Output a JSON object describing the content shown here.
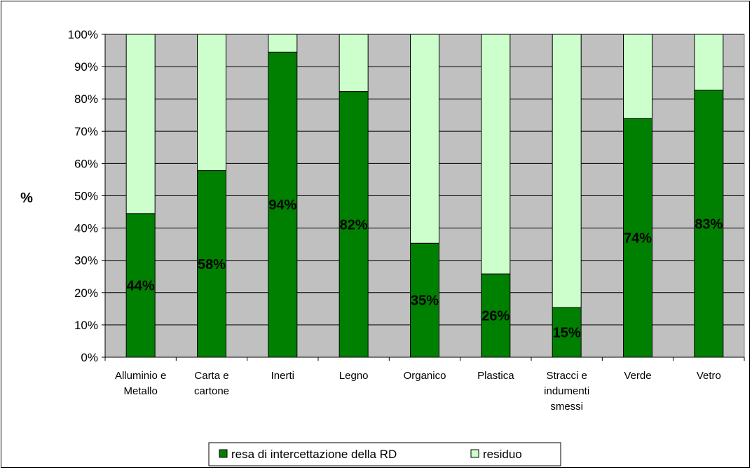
{
  "chart_data": {
    "type": "bar",
    "stacked": true,
    "percent_stacked": true,
    "categories": [
      [
        "Alluminio e",
        "Metallo"
      ],
      [
        "Carta e",
        "cartone"
      ],
      [
        "Inerti"
      ],
      [
        "Legno"
      ],
      [
        "Organico"
      ],
      [
        "Plastica"
      ],
      [
        "Stracci e",
        "indumenti",
        "smessi"
      ],
      [
        "Verde"
      ],
      [
        "Vetro"
      ]
    ],
    "series": [
      {
        "name": "resa di intercettazione della RD",
        "color": "#008000",
        "values": [
          44.5,
          57.8,
          94.5,
          82.3,
          35.3,
          25.8,
          15.4,
          73.9,
          82.7
        ],
        "labels": [
          "44%",
          "58%",
          "94%",
          "82%",
          "35%",
          "26%",
          "15%",
          "74%",
          "83%"
        ]
      },
      {
        "name": "residuo",
        "color": "#ccffcc",
        "values": [
          55.5,
          42.2,
          5.5,
          17.7,
          64.7,
          74.2,
          84.6,
          26.1,
          17.3
        ]
      }
    ],
    "ylabel": "%",
    "ylim": [
      0,
      100
    ],
    "yticks": [
      "0%",
      "10%",
      "20%",
      "30%",
      "40%",
      "50%",
      "60%",
      "70%",
      "80%",
      "90%",
      "100%"
    ],
    "grid": true,
    "plot_background": "#c0c0c0",
    "legend_position": "bottom"
  }
}
